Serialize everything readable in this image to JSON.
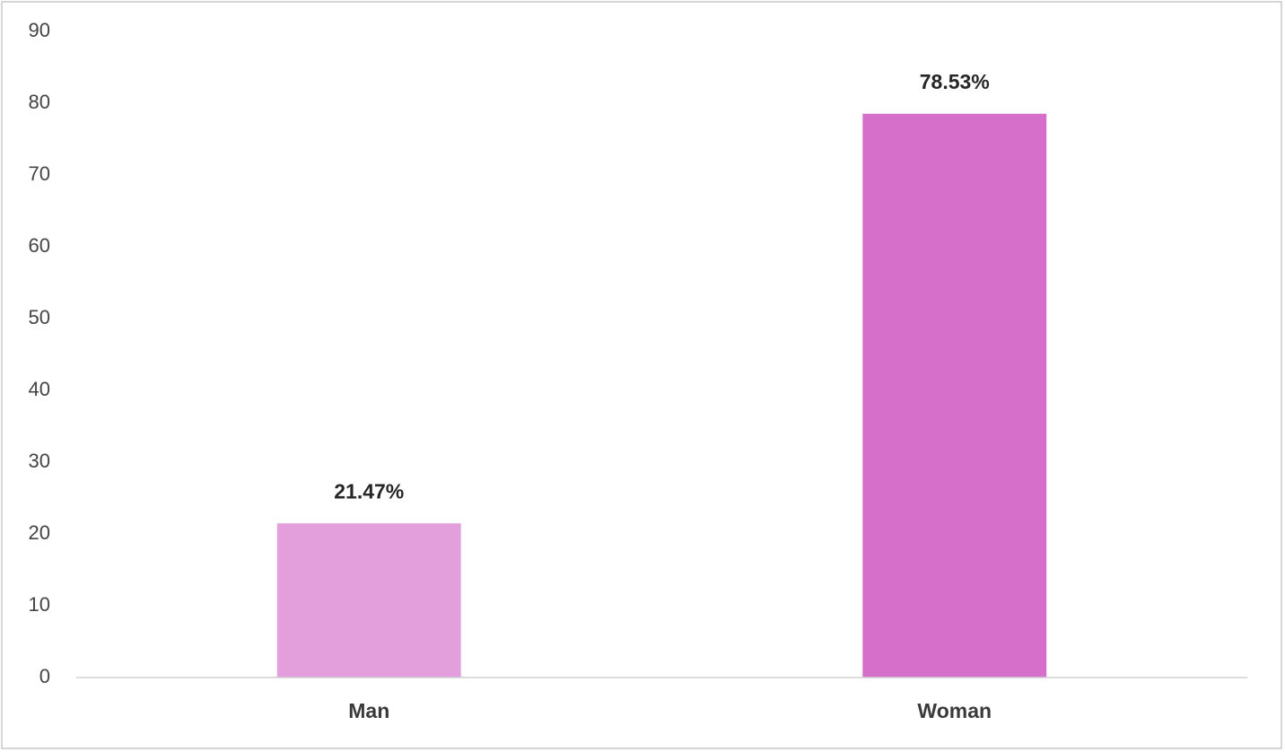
{
  "chart_data": {
    "type": "bar",
    "categories": [
      "Man",
      "Woman"
    ],
    "values": [
      21.47,
      78.53
    ],
    "value_labels": [
      "21.47%",
      "78.53%"
    ],
    "colors": [
      "#e39edc",
      "#d56fc9"
    ],
    "ylim": [
      0,
      90
    ],
    "yticks": [
      0,
      10,
      20,
      30,
      40,
      50,
      60,
      70,
      80,
      90
    ],
    "grid": false
  }
}
